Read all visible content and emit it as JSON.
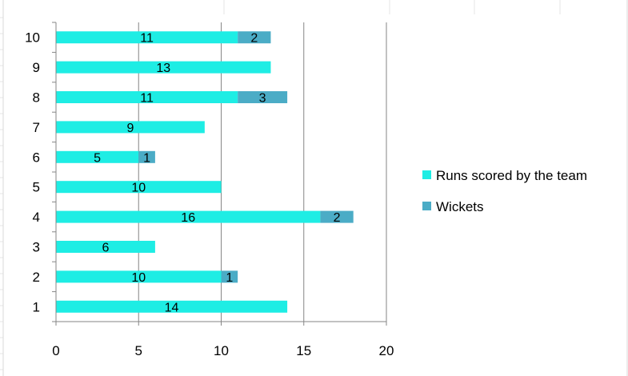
{
  "chart_data": {
    "type": "bar",
    "orientation": "horizontal",
    "stacked": true,
    "categories": [
      "1",
      "2",
      "3",
      "4",
      "5",
      "6",
      "7",
      "8",
      "9",
      "10"
    ],
    "series": [
      {
        "name": "Runs scored by the team",
        "color": "#1EEDE4",
        "values": [
          14,
          10,
          6,
          16,
          10,
          5,
          9,
          11,
          13,
          11
        ]
      },
      {
        "name": "Wickets",
        "color": "#4BACC6",
        "values": [
          0,
          1,
          0,
          2,
          0,
          1,
          0,
          3,
          0,
          2
        ]
      }
    ],
    "xlim": [
      0,
      20
    ],
    "xticks": [
      "0",
      "5",
      "10",
      "15",
      "20"
    ],
    "grid": true,
    "legend_position": "right"
  }
}
